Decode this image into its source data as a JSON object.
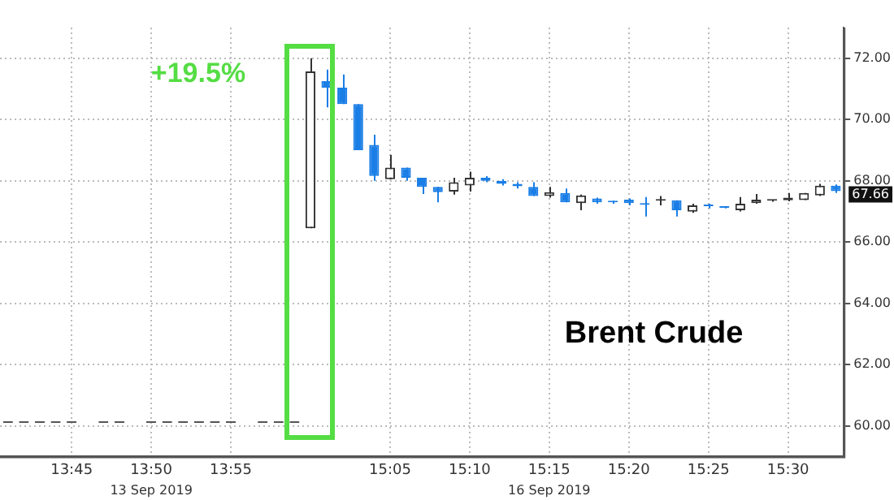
{
  "chart_data": {
    "type": "candlestick",
    "categories": [
      null,
      null,
      null,
      null,
      "13:45",
      null,
      null,
      null,
      null,
      "13:50",
      null,
      null,
      null,
      null,
      "13:55",
      null,
      null,
      null,
      null,
      null,
      null,
      null,
      null,
      null,
      "15:05",
      null,
      null,
      null,
      null,
      "15:10",
      null,
      null,
      null,
      null,
      "15:15",
      null,
      null,
      null,
      null,
      "15:20",
      null,
      null,
      null,
      null,
      "15:25",
      null,
      null,
      null,
      null,
      "15:30",
      null,
      null,
      null
    ],
    "ohlc": [
      [
        60.1,
        60.1,
        60.1,
        60.1
      ],
      [
        60.1,
        60.1,
        60.1,
        60.1
      ],
      [
        60.1,
        60.1,
        60.1,
        60.1
      ],
      [
        60.1,
        60.1,
        60.1,
        60.1
      ],
      [
        60.1,
        60.1,
        60.1,
        60.1
      ],
      null,
      [
        60.1,
        60.1,
        60.1,
        60.1
      ],
      [
        60.1,
        60.1,
        60.1,
        60.1
      ],
      null,
      [
        60.1,
        60.1,
        60.1,
        60.1
      ],
      [
        60.1,
        60.1,
        60.1,
        60.1
      ],
      [
        60.1,
        60.1,
        60.1,
        60.1
      ],
      [
        60.1,
        60.1,
        60.1,
        60.1
      ],
      [
        60.1,
        60.1,
        60.1,
        60.1
      ],
      [
        60.1,
        60.1,
        60.1,
        60.1
      ],
      null,
      [
        60.1,
        60.1,
        60.1,
        60.1
      ],
      [
        60.1,
        60.1,
        60.1,
        60.1
      ],
      [
        60.1,
        60.1,
        60.1,
        60.1
      ],
      [
        66.45,
        72.0,
        66.45,
        71.57
      ],
      [
        71.25,
        71.63,
        70.4,
        71.04
      ],
      [
        71.04,
        71.47,
        70.5,
        70.5
      ],
      [
        70.5,
        70.5,
        69.0,
        69.0
      ],
      [
        69.17,
        69.5,
        68.0,
        68.16
      ],
      [
        68.05,
        68.85,
        68.05,
        68.43
      ],
      [
        68.43,
        68.43,
        68.0,
        68.1
      ],
      [
        68.1,
        68.1,
        67.57,
        67.8
      ],
      [
        67.8,
        67.8,
        67.3,
        67.63
      ],
      [
        67.65,
        68.1,
        67.55,
        67.95
      ],
      [
        67.85,
        68.3,
        67.65,
        68.1
      ],
      [
        68.1,
        68.15,
        67.95,
        68.0
      ],
      [
        68.0,
        68.05,
        67.85,
        67.9
      ],
      [
        67.9,
        67.95,
        67.75,
        67.82
      ],
      [
        67.8,
        67.95,
        67.5,
        67.5
      ],
      [
        67.5,
        67.8,
        67.45,
        67.63
      ],
      [
        67.6,
        67.75,
        67.3,
        67.3
      ],
      [
        67.27,
        67.55,
        67.04,
        67.52
      ],
      [
        67.42,
        67.45,
        67.25,
        67.3
      ],
      [
        67.32,
        67.35,
        67.25,
        67.3
      ],
      [
        67.38,
        67.42,
        67.2,
        67.27
      ],
      [
        67.25,
        67.47,
        66.83,
        67.22
      ],
      [
        67.35,
        67.5,
        67.2,
        67.38
      ],
      [
        67.36,
        67.36,
        66.83,
        67.04
      ],
      [
        66.99,
        67.25,
        66.95,
        67.2
      ],
      [
        67.2,
        67.25,
        67.1,
        67.17
      ],
      [
        67.15,
        67.15,
        67.1,
        67.12
      ],
      [
        67.04,
        67.47,
        67.0,
        67.25
      ],
      [
        67.27,
        67.57,
        67.25,
        67.38
      ],
      [
        67.35,
        67.38,
        67.32,
        67.36
      ],
      [
        67.36,
        67.6,
        67.33,
        67.45
      ],
      [
        67.37,
        67.6,
        67.37,
        67.6
      ],
      [
        67.52,
        67.9,
        67.5,
        67.84
      ],
      [
        67.84,
        67.88,
        67.6,
        67.66
      ]
    ],
    "colors": [
      "#555555",
      "#555555",
      "#555555",
      "#555555",
      "#555555",
      null,
      "#555555",
      "#555555",
      null,
      "#555555",
      "#555555",
      "#555555",
      "#555555",
      "#555555",
      "#555555",
      null,
      "#555555",
      "#555555",
      "#555555",
      "#333333",
      "#1a7ee6",
      "#1a7ee6",
      "#1a7ee6",
      "#1a7ee6",
      "#333333",
      "#1a7ee6",
      "#1a7ee6",
      "#1a7ee6",
      "#333333",
      "#333333",
      "#1a7ee6",
      "#1a7ee6",
      "#1a7ee6",
      "#1a7ee6",
      "#333333",
      "#1a7ee6",
      "#333333",
      "#1a7ee6",
      "#1a7ee6",
      "#1a7ee6",
      "#1a7ee6",
      "#333333",
      "#1a7ee6",
      "#333333",
      "#1a7ee6",
      "#1a7ee6",
      "#333333",
      "#333333",
      "#333333",
      "#333333",
      "#333333",
      "#333333",
      "#1a7ee6"
    ],
    "ylim": [
      59,
      73
    ],
    "yticks": [
      {
        "value": 60,
        "label": "60.00"
      },
      {
        "value": 62,
        "label": "62.00"
      },
      {
        "value": 64,
        "label": "64.00"
      },
      {
        "value": 66,
        "label": "66.00"
      },
      {
        "value": 68,
        "label": "68.00"
      },
      {
        "value": 70,
        "label": "70.00"
      },
      {
        "value": 72,
        "label": "72.00"
      }
    ],
    "grid": true,
    "legend": false,
    "annotations": [
      "+19.5%",
      "Brent Crude",
      "13 Sep 2019",
      "16 Sep 2019",
      "67.66"
    ]
  }
}
